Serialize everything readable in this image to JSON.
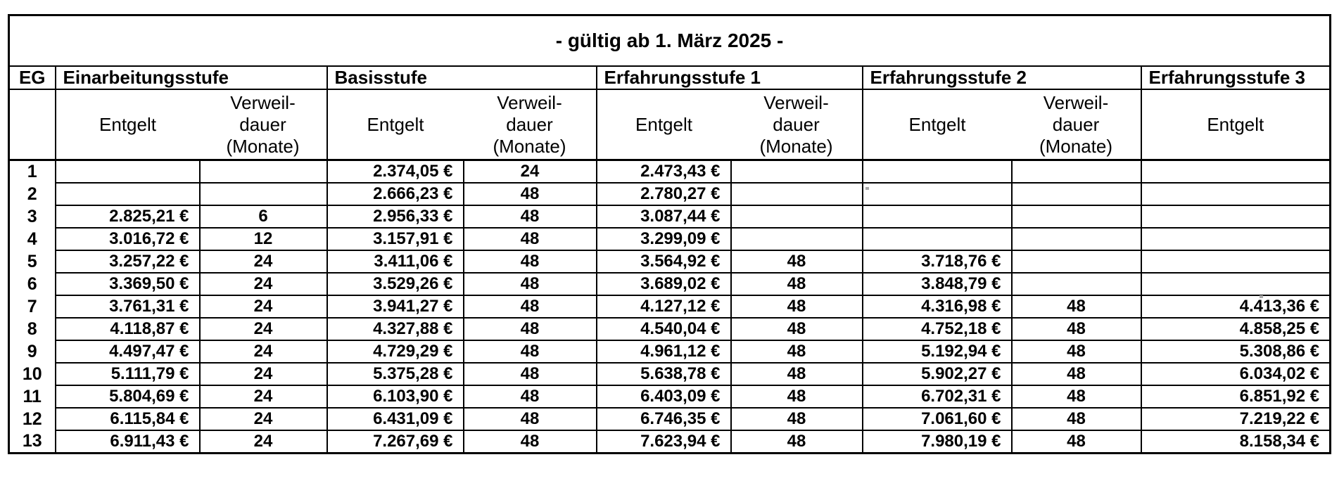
{
  "title": "- gültig ab 1. März 2025 -",
  "table": {
    "eg_header": "EG",
    "entgelt_label": "Entgelt",
    "verweildauer_label": "Verweil-\ndauer\n(Monate)",
    "groups": [
      {
        "label": "Einarbeitungsstufe",
        "has_verweildauer": true
      },
      {
        "label": "Basisstufe",
        "has_verweildauer": true
      },
      {
        "label": "Erfahrungsstufe 1",
        "has_verweildauer": true
      },
      {
        "label": "Erfahrungsstufe 2",
        "has_verweildauer": true
      },
      {
        "label": "Erfahrungsstufe 3",
        "has_verweildauer": false
      }
    ],
    "row_columns": [
      "eg",
      "einarbeitungsstufe_entgelt",
      "einarbeitungsstufe_verweildauer",
      "basisstufe_entgelt",
      "basisstufe_verweildauer",
      "erfahrungsstufe1_entgelt",
      "erfahrungsstufe1_verweildauer",
      "erfahrungsstufe2_entgelt",
      "erfahrungsstufe2_verweildauer",
      "erfahrungsstufe3_entgelt"
    ],
    "rows": [
      [
        "1",
        "",
        "",
        "2.374,05 €",
        "24",
        "2.473,43 €",
        "",
        "",
        "",
        ""
      ],
      [
        "2",
        "",
        "",
        "2.666,23 €",
        "48",
        "2.780,27 €",
        "",
        "",
        "",
        ""
      ],
      [
        "3",
        "2.825,21 €",
        "6",
        "2.956,33 €",
        "48",
        "3.087,44 €",
        "",
        "",
        "",
        ""
      ],
      [
        "4",
        "3.016,72 €",
        "12",
        "3.157,91 €",
        "48",
        "3.299,09 €",
        "",
        "",
        "",
        ""
      ],
      [
        "5",
        "3.257,22 €",
        "24",
        "3.411,06 €",
        "48",
        "3.564,92 €",
        "48",
        "3.718,76 €",
        "",
        ""
      ],
      [
        "6",
        "3.369,50 €",
        "24",
        "3.529,26 €",
        "48",
        "3.689,02 €",
        "48",
        "3.848,79 €",
        "",
        ""
      ],
      [
        "7",
        "3.761,31 €",
        "24",
        "3.941,27 €",
        "48",
        "4.127,12 €",
        "48",
        "4.316,98 €",
        "48",
        "4.413,36 €"
      ],
      [
        "8",
        "4.118,87 €",
        "24",
        "4.327,88 €",
        "48",
        "4.540,04 €",
        "48",
        "4.752,18 €",
        "48",
        "4.858,25 €"
      ],
      [
        "9",
        "4.497,47 €",
        "24",
        "4.729,29 €",
        "48",
        "4.961,12 €",
        "48",
        "5.192,94 €",
        "48",
        "5.308,86 €"
      ],
      [
        "10",
        "5.111,79 €",
        "24",
        "5.375,28 €",
        "48",
        "5.638,78 €",
        "48",
        "5.902,27 €",
        "48",
        "6.034,02 €"
      ],
      [
        "11",
        "5.804,69 €",
        "24",
        "6.103,90 €",
        "48",
        "6.403,09 €",
        "48",
        "6.702,31 €",
        "48",
        "6.851,92 €"
      ],
      [
        "12",
        "6.115,84 €",
        "24",
        "6.431,09 €",
        "48",
        "6.746,35 €",
        "48",
        "7.061,60 €",
        "48",
        "7.219,22 €"
      ],
      [
        "13",
        "6.911,43 €",
        "24",
        "7.267,69 €",
        "48",
        "7.623,94 €",
        "48",
        "7.980,19 €",
        "48",
        "8.158,34 €"
      ]
    ]
  }
}
